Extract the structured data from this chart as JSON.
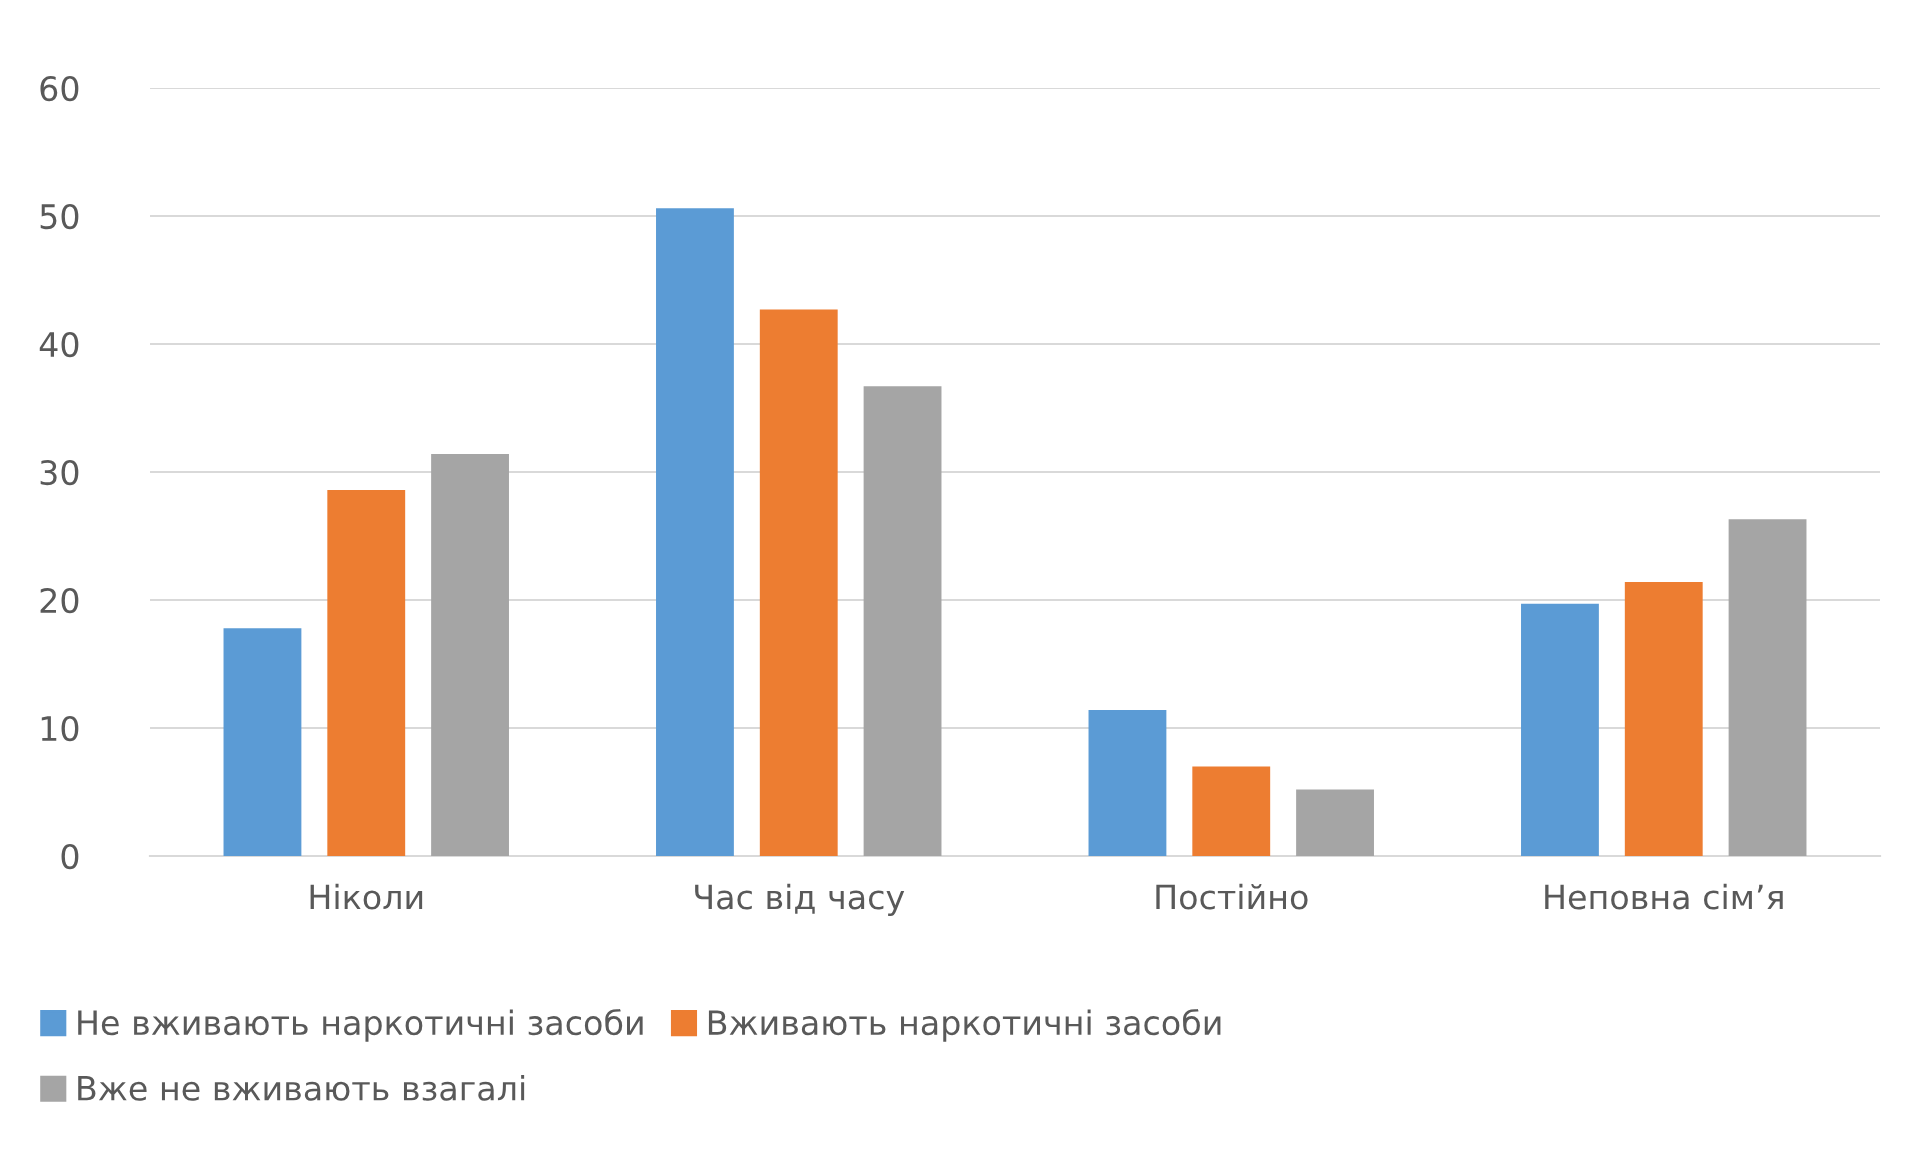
{
  "chart_data": {
    "type": "bar",
    "categories": [
      "Ніколи",
      "Час від часу",
      "Постійно",
      "Неповна сім’я"
    ],
    "series": [
      {
        "name": "Не вживають наркотичні засоби",
        "color": "#5b9bd5",
        "values": [
          17.8,
          50.6,
          11.4,
          19.7
        ]
      },
      {
        "name": "Вживають наркотичні засоби",
        "color": "#ed7d31",
        "values": [
          28.6,
          42.7,
          7.0,
          21.4
        ]
      },
      {
        "name": "Вже не вживають взагалі",
        "color": "#a5a5a5",
        "values": [
          31.4,
          36.7,
          5.2,
          26.3
        ]
      }
    ],
    "ylim": [
      0,
      60
    ],
    "yticks": [
      0,
      10,
      20,
      30,
      40,
      50,
      60
    ],
    "grid": "y",
    "legend": "bottom"
  }
}
